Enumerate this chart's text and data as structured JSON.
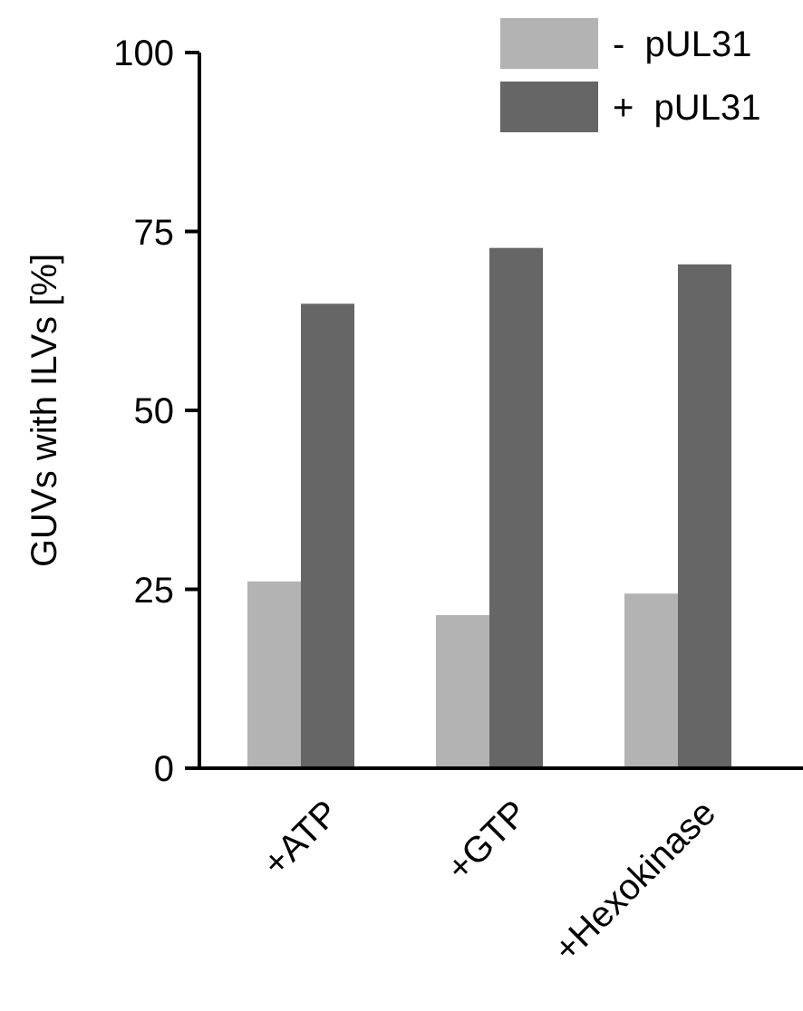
{
  "chart_data": {
    "type": "bar",
    "ylabel": "GUVs with ILVs [%]",
    "categories": [
      "+ATP",
      "+GTP",
      "+Hexokinase"
    ],
    "series": [
      {
        "name": "-  pUL31",
        "color": "#b3b3b3",
        "values": [
          26.1,
          21.4,
          24.4
        ]
      },
      {
        "name": "+  pUL31",
        "color": "#666666",
        "values": [
          64.9,
          72.7,
          70.4
        ]
      }
    ],
    "ylim": [
      0,
      100
    ],
    "yticks": [
      0,
      25,
      50,
      75,
      100
    ],
    "grid": false,
    "legend": "top right"
  }
}
